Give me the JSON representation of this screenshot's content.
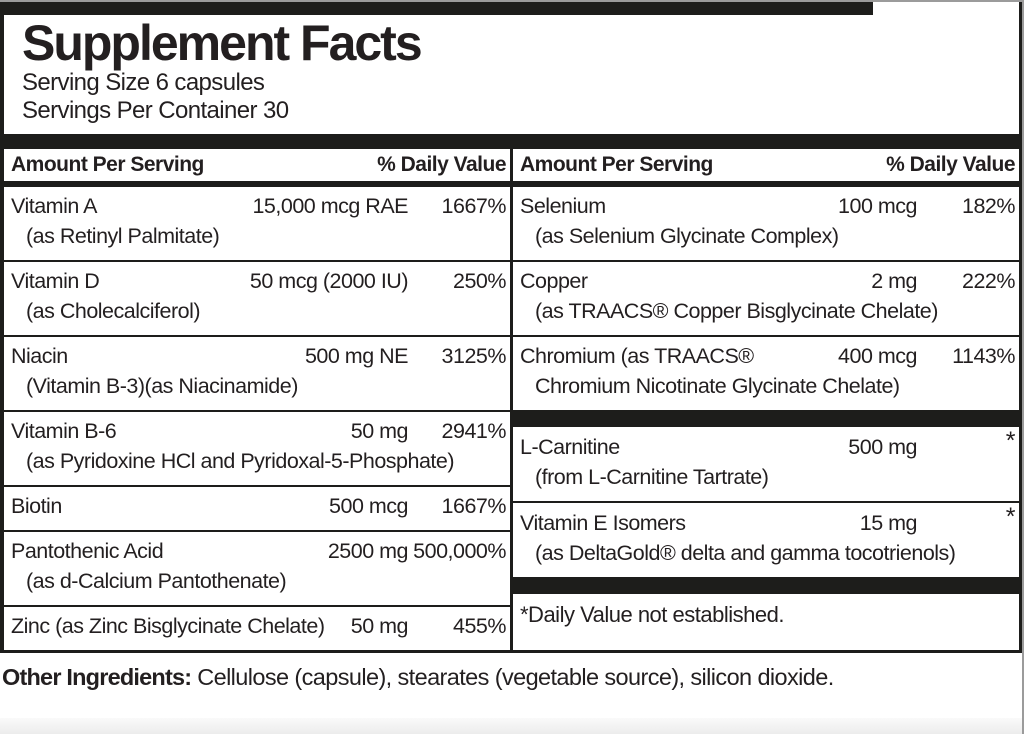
{
  "label": {
    "title": "Supplement Facts",
    "serving_size": "Serving Size 6 capsules",
    "servings_per_container": "Servings Per Container 30",
    "column_header": {
      "amount": "Amount Per Serving",
      "daily_value": "% Daily Value"
    },
    "left_rows": [
      {
        "type": "item",
        "name": "Vitamin A",
        "amount": "15,000 mcg RAE",
        "dv": "1667%",
        "sub": "(as Retinyl Palmitate)"
      },
      {
        "type": "item",
        "name": "Vitamin D",
        "amount": "50 mcg (2000 IU)",
        "dv": "250%",
        "sub": "(as Cholecalciferol)"
      },
      {
        "type": "item",
        "name": "Niacin",
        "amount": "500 mg NE",
        "dv": "3125%",
        "sub": "(Vitamin B-3)(as Niacinamide)"
      },
      {
        "type": "item",
        "name": "Vitamin B-6",
        "amount": "50 mg",
        "dv": "2941%",
        "sub": "(as Pyridoxine HCl and Pyridoxal-5-Phosphate)"
      },
      {
        "type": "item",
        "name": "Biotin",
        "amount": "500 mcg",
        "dv": "1667%"
      },
      {
        "type": "item",
        "name": "Pantothenic Acid",
        "amount": "2500 mg",
        "dv": "500,000%",
        "sub": "(as d-Calcium Pantothenate)"
      },
      {
        "type": "item",
        "name": "Zinc (as Zinc Bisglycinate Chelate)",
        "amount": "50 mg",
        "dv": "455%"
      }
    ],
    "right_rows": [
      {
        "type": "item",
        "name": "Selenium",
        "amount": "100 mcg",
        "dv": "182%",
        "sub": "(as Selenium Glycinate Complex)"
      },
      {
        "type": "item",
        "name": "Copper",
        "amount": "2 mg",
        "dv": "222%",
        "sub": "(as TRAACS® Copper Bisglycinate Chelate)"
      },
      {
        "type": "item",
        "name": "Chromium (as TRAACS®",
        "amount": "400 mcg",
        "dv": "1143%",
        "sub": "Chromium Nicotinate Glycinate Chelate)"
      },
      {
        "type": "bar"
      },
      {
        "type": "item",
        "name": "L-Carnitine",
        "amount": "500 mg",
        "dv": "*",
        "sub": "(from L-Carnitine Tartrate)"
      },
      {
        "type": "item",
        "name": "Vitamin E Isomers",
        "amount": "15 mg",
        "dv": "*",
        "sub": "(as DeltaGold® delta and gamma tocotrienols)"
      },
      {
        "type": "bar"
      },
      {
        "type": "note",
        "text": "*Daily Value not established."
      }
    ],
    "other_ingredients_label": "Other Ingredients:",
    "other_ingredients_text": " Cellulose (capsule), stearates (vegetable source), silicon dioxide."
  },
  "colors": {
    "text": "#231f20",
    "bar": "#1d1d1b",
    "background": "#ffffff"
  }
}
